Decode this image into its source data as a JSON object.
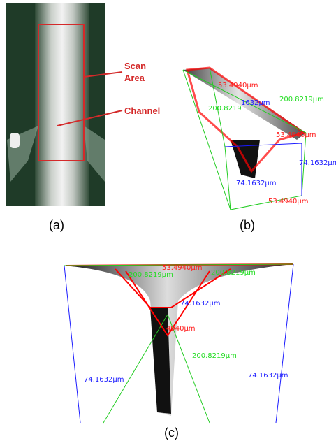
{
  "panel_a": {
    "scan_area": [
      "Scan",
      "Area"
    ],
    "channel": "Channel",
    "caption": "(a)"
  },
  "panel_b": {
    "labels": [
      "53.4940µm",
      "200.8219µm",
      "1632µm",
      "200.8219",
      "53.4940µm",
      "74.1632µm",
      "74.1632µm",
      "53.4940µm"
    ],
    "caption": "(b)"
  },
  "panel_c": {
    "labels": [
      "53.4940µm",
      "200.8219µm",
      "200.8219µm",
      "74.1632µm",
      "4940µm",
      "200.8219µm",
      "74.1632µm",
      "74.1632µm"
    ],
    "caption": "(c)"
  }
}
